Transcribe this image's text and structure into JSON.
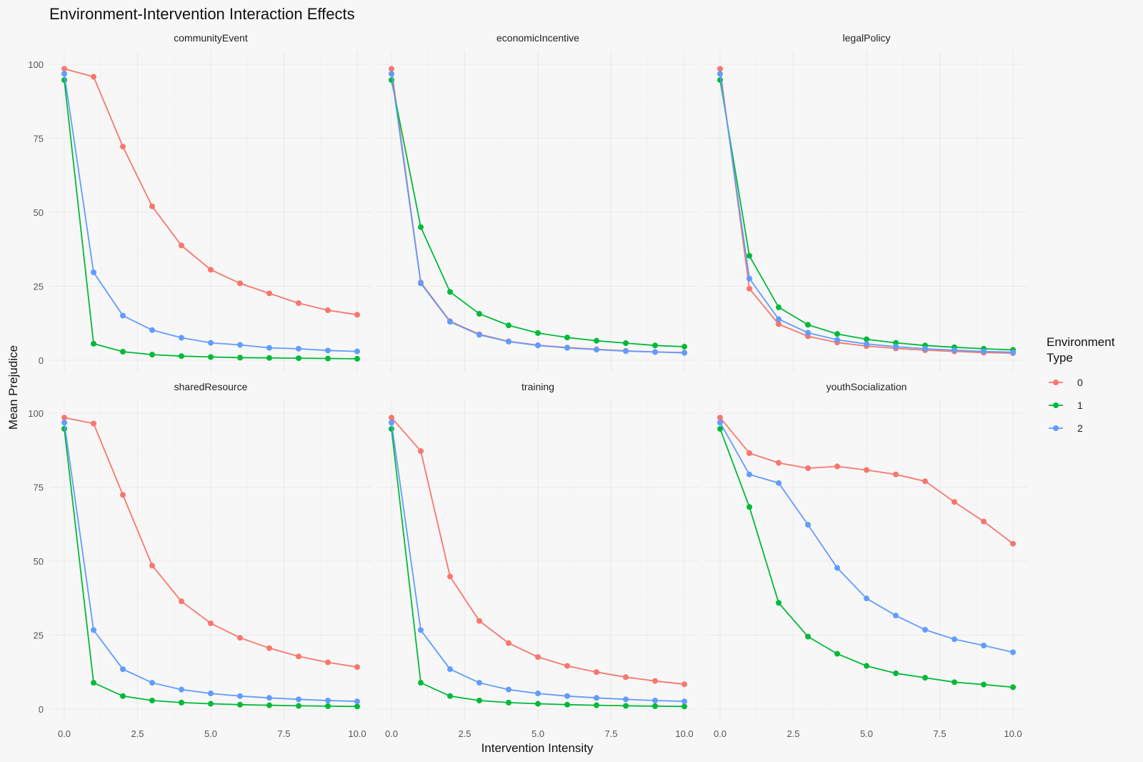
{
  "chart_data": {
    "type": "line",
    "title": "Environment-Intervention Interaction Effects",
    "xlabel": "Intervention Intensity",
    "ylabel": "Mean Prejudice",
    "xlim": [
      0,
      10
    ],
    "ylim": [
      0,
      100
    ],
    "x_ticks": [
      "0.0",
      "2.5",
      "5.0",
      "7.5",
      "10.0"
    ],
    "y_ticks": [
      "0",
      "25",
      "50",
      "75",
      "100"
    ],
    "grid": true,
    "legend": {
      "title_lines": [
        "Environment",
        "Type"
      ],
      "placement": "right",
      "entries": [
        {
          "label": "0",
          "color": "#F8766D"
        },
        {
          "label": "1",
          "color": "#00BA38"
        },
        {
          "label": "2",
          "color": "#619CFF"
        }
      ]
    },
    "x": [
      0,
      1,
      2,
      3,
      4,
      5,
      6,
      7,
      8,
      9,
      10
    ],
    "panels": [
      {
        "name": "communityEvent",
        "series": [
          {
            "name": "0",
            "values": [
              98.5,
              95.8,
              72.2,
              52.0,
              38.8,
              30.6,
              26.0,
              22.6,
              19.3,
              16.9,
              15.4
            ]
          },
          {
            "name": "1",
            "values": [
              94.7,
              5.6,
              2.9,
              1.9,
              1.4,
              1.1,
              0.9,
              0.8,
              0.7,
              0.6,
              0.5
            ]
          },
          {
            "name": "2",
            "values": [
              96.8,
              29.7,
              15.1,
              10.2,
              7.6,
              5.9,
              5.2,
              4.2,
              3.9,
              3.3,
              3.0
            ]
          }
        ]
      },
      {
        "name": "economicIncentive",
        "series": [
          {
            "name": "0",
            "values": [
              98.5,
              26.3,
              13.2,
              8.8,
              6.4,
              5.1,
              4.3,
              3.7,
              3.2,
              2.8,
              2.6
            ]
          },
          {
            "name": "1",
            "values": [
              94.7,
              45.0,
              23.1,
              15.7,
              11.8,
              9.2,
              7.7,
              6.6,
              5.8,
              5.0,
              4.6
            ]
          },
          {
            "name": "2",
            "values": [
              96.8,
              26.0,
              13.0,
              8.6,
              6.3,
              5.0,
              4.2,
              3.6,
              3.1,
              2.8,
              2.5
            ]
          }
        ]
      },
      {
        "name": "legalPolicy",
        "series": [
          {
            "name": "0",
            "values": [
              98.5,
              24.2,
              12.2,
              8.1,
              6.0,
              4.8,
              4.0,
              3.4,
              3.0,
              2.6,
              2.4
            ]
          },
          {
            "name": "1",
            "values": [
              94.7,
              35.3,
              17.9,
              12.0,
              8.9,
              7.1,
              5.9,
              5.0,
              4.4,
              3.9,
              3.5
            ]
          },
          {
            "name": "2",
            "values": [
              96.8,
              27.6,
              13.9,
              9.3,
              6.9,
              5.5,
              4.6,
              3.9,
              3.4,
              3.0,
              2.7
            ]
          }
        ]
      },
      {
        "name": "sharedResource",
        "series": [
          {
            "name": "0",
            "values": [
              98.5,
              96.5,
              72.4,
              48.5,
              36.4,
              29.0,
              24.1,
              20.6,
              17.8,
              15.8,
              14.2
            ]
          },
          {
            "name": "1",
            "values": [
              94.7,
              8.9,
              4.4,
              2.9,
              2.2,
              1.8,
              1.5,
              1.3,
              1.1,
              1.0,
              0.9
            ]
          },
          {
            "name": "2",
            "values": [
              96.8,
              26.7,
              13.5,
              8.9,
              6.6,
              5.3,
              4.4,
              3.8,
              3.3,
              2.9,
              2.6
            ]
          }
        ]
      },
      {
        "name": "training",
        "series": [
          {
            "name": "0",
            "values": [
              98.5,
              87.2,
              44.8,
              29.8,
              22.3,
              17.6,
              14.6,
              12.5,
              10.8,
              9.5,
              8.4
            ]
          },
          {
            "name": "1",
            "values": [
              94.7,
              8.9,
              4.4,
              2.9,
              2.2,
              1.8,
              1.5,
              1.3,
              1.1,
              1.0,
              0.9
            ]
          },
          {
            "name": "2",
            "values": [
              96.8,
              26.7,
              13.5,
              8.9,
              6.6,
              5.3,
              4.4,
              3.8,
              3.3,
              2.9,
              2.6
            ]
          }
        ]
      },
      {
        "name": "youthSocialization",
        "series": [
          {
            "name": "0",
            "values": [
              98.5,
              86.5,
              83.2,
              81.4,
              82.0,
              80.8,
              79.3,
              77.0,
              70.0,
              63.4,
              55.9
            ]
          },
          {
            "name": "1",
            "values": [
              94.7,
              68.3,
              35.9,
              24.5,
              18.7,
              14.6,
              12.1,
              10.6,
              9.1,
              8.3,
              7.4
            ]
          },
          {
            "name": "2",
            "values": [
              96.8,
              79.3,
              76.4,
              62.3,
              47.7,
              37.4,
              31.6,
              26.8,
              23.6,
              21.5,
              19.2
            ]
          }
        ]
      }
    ]
  }
}
